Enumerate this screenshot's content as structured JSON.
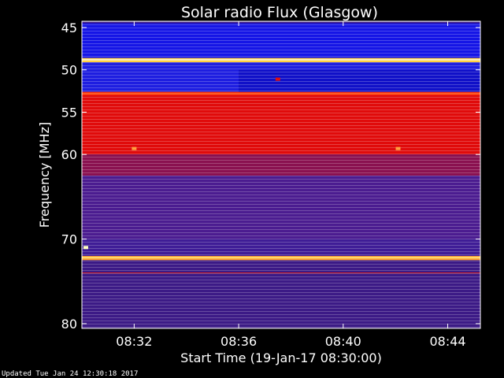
{
  "chart_data": {
    "type": "heatmap",
    "title": "Solar radio Flux (Glasgow)",
    "xlabel": "Start Time (19-Jan-17 08:30:00)",
    "ylabel": "Frequency [MHz]",
    "x_unit": "minutes after 08:30:00",
    "xlim": [
      0,
      15.25
    ],
    "ylim": [
      45,
      80
    ],
    "y_ticks": [
      45,
      50,
      55,
      60,
      70,
      80
    ],
    "x_ticks": [
      {
        "value": 2,
        "label": "08:32"
      },
      {
        "value": 6,
        "label": "08:36"
      },
      {
        "value": 10,
        "label": "08:40"
      },
      {
        "value": 14,
        "label": "08:44"
      }
    ],
    "bands": [
      {
        "from": 44.5,
        "to": 48.6,
        "color": "#1515e6"
      },
      {
        "from": 48.6,
        "to": 49.1,
        "color": "#ffd040"
      },
      {
        "from": 49.1,
        "to": 52.6,
        "color": "#1e1ee0"
      },
      {
        "from": 52.6,
        "to": 53.0,
        "color": "#ff2a00"
      },
      {
        "from": 53.0,
        "to": 60.0,
        "color": "#e00b0b"
      },
      {
        "from": 60.0,
        "to": 62.5,
        "color": "#8a1150"
      },
      {
        "from": 62.5,
        "to": 70.0,
        "color": "#4b1c90"
      },
      {
        "from": 70.0,
        "to": 72.0,
        "color": "#3f1d96"
      },
      {
        "from": 72.0,
        "to": 72.5,
        "color": "#ffa030"
      },
      {
        "from": 72.5,
        "to": 80.5,
        "color": "#3c1a86"
      }
    ],
    "lines": [
      {
        "freq": 48.8,
        "color": "#fff2c0",
        "width": 2
      },
      {
        "freq": 52.8,
        "color": "#ff5a20",
        "width": 2
      },
      {
        "freq": 72.2,
        "color": "#ffdf70",
        "width": 2
      },
      {
        "freq": 74.0,
        "color": "#d82020",
        "width": 1
      }
    ],
    "regions": [
      {
        "t0": 6.0,
        "t1": 15.25,
        "f0": 50.0,
        "f1": 52.6,
        "color": "#1010c8"
      }
    ],
    "spots": [
      {
        "t": 2.0,
        "f": 59.3,
        "color": "#ffa040"
      },
      {
        "t": 12.1,
        "f": 59.3,
        "color": "#ffa040"
      },
      {
        "t": 7.5,
        "f": 51.1,
        "color": "#e01010"
      },
      {
        "t": 0.15,
        "f": 71.0,
        "color": "#ffffc0"
      }
    ],
    "colorscale": [
      "#0000ff",
      "#4b1c90",
      "#e00b0b",
      "#ffd040",
      "#ffffff"
    ]
  },
  "footer": {
    "updated": "Updated Tue Jan 24 12:30:18 2017"
  }
}
